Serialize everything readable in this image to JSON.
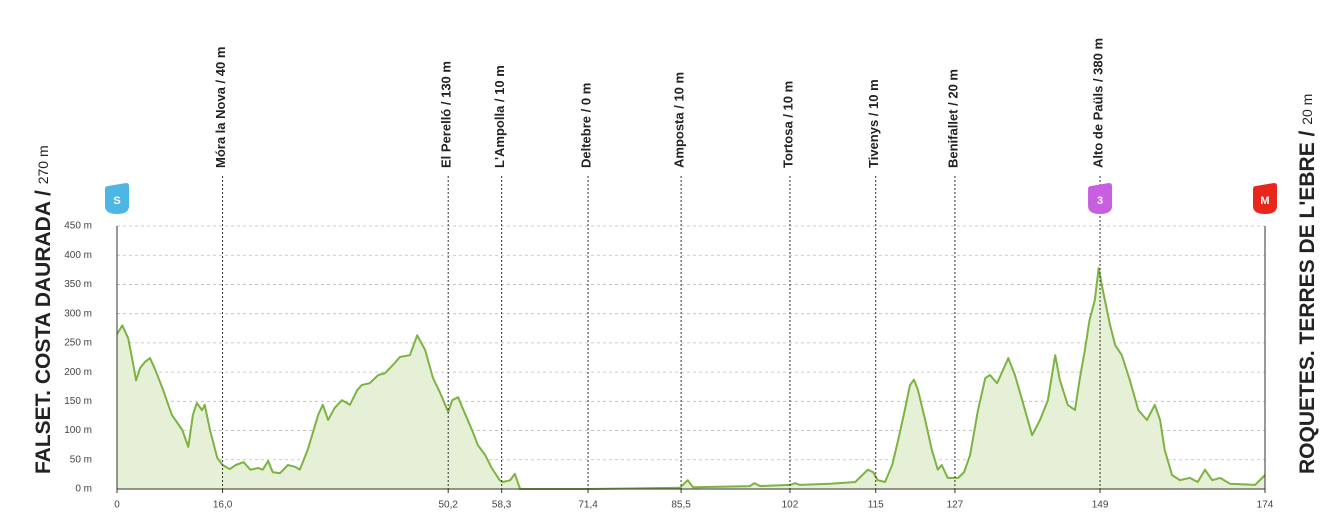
{
  "chart_data": {
    "type": "line",
    "start": {
      "name": "FALSET. COSTA DAURADA /",
      "altitude": "270 m"
    },
    "finish": {
      "name": "ROQUETES. TERRES DE L'EBRE /",
      "altitude": "20 m"
    },
    "x": [
      0,
      0.8,
      1.7,
      2.4,
      2.9,
      3.5,
      4.2,
      5.0,
      5.8,
      7.0,
      8.3,
      9.9,
      10.8,
      11.5,
      12.1,
      12.9,
      13.3,
      14.1,
      15.2,
      16.0,
      17.1,
      18.0,
      19.2,
      20.2,
      21.4,
      22.1,
      22.9,
      23.6,
      24.7,
      25.9,
      27.0,
      27.7,
      28.9,
      30.5,
      31.2,
      32.0,
      33.0,
      34.1,
      35.3,
      36.4,
      37.1,
      38.3,
      39.6,
      40.6,
      41.8,
      42.9,
      44.4,
      45.5,
      46.7,
      47.9,
      49.0,
      50.2,
      50.8,
      51.7,
      52.7,
      53.8,
      54.7,
      55.8,
      56.8,
      58.0,
      58.5,
      59.6,
      60.3,
      61.1,
      71.4,
      85.3,
      86.5,
      87.3,
      95.9,
      96.6,
      97.5,
      102.0,
      102.8,
      103.5,
      108.1,
      111.9,
      113.8,
      114.6,
      115.3,
      116.4,
      117.5,
      118.4,
      119.4,
      120.2,
      120.8,
      121.4,
      122.5,
      123.5,
      124.4,
      125.0,
      125.9,
      127.5,
      128.4,
      129.3,
      130.5,
      131.6,
      132.3,
      133.4,
      134.3,
      135.1,
      136.1,
      137.2,
      138.7,
      139.9,
      141.1,
      142.2,
      142.9,
      144.1,
      145.2,
      145.9,
      146.7,
      147.4,
      148.2,
      148.8,
      149.4,
      150.5,
      151.3,
      152.3,
      153.5,
      154.8,
      156.1,
      157.3,
      158.1,
      158.8,
      159.9,
      161.1,
      162.6,
      163.8,
      164.9,
      166.0,
      167.2,
      168.7,
      172.5,
      174
    ],
    "values": [
      265,
      280,
      258,
      217,
      186,
      207,
      217,
      224,
      204,
      169,
      127,
      101,
      72,
      127,
      147,
      135,
      144,
      101,
      53,
      41,
      34,
      41,
      46,
      33,
      36,
      33,
      48,
      29,
      27,
      41,
      38,
      33,
      67,
      127,
      144,
      118,
      139,
      152,
      144,
      169,
      178,
      181,
      195,
      198,
      212,
      226,
      229,
      263,
      238,
      190,
      164,
      132,
      152,
      157,
      130,
      101,
      75,
      58,
      36,
      15,
      12,
      15,
      26,
      0,
      0,
      2,
      15,
      3,
      5,
      10,
      5,
      7,
      10,
      7,
      9,
      12,
      33,
      29,
      15,
      12,
      41,
      84,
      135,
      178,
      187,
      169,
      118,
      67,
      33,
      41,
      19,
      19,
      29,
      58,
      135,
      190,
      195,
      181,
      204,
      224,
      195,
      152,
      92,
      118,
      152,
      229,
      187,
      144,
      135,
      187,
      238,
      289,
      323,
      378,
      341,
      281,
      246,
      229,
      187,
      135,
      118,
      144,
      118,
      67,
      24,
      15,
      19,
      12,
      33,
      15,
      19,
      9,
      7,
      24
    ],
    "line_color": "#7cb342",
    "area_color": "#e6f0d6",
    "xlim": [
      0,
      174
    ],
    "ylim": [
      0,
      450
    ],
    "xticks": [
      0,
      {
        "value": 16.0,
        "label": "16,0"
      },
      {
        "value": 50.2,
        "label": "50,2"
      },
      {
        "value": 58.3,
        "label": "58,3"
      },
      {
        "value": 71.4,
        "label": "71,4"
      },
      {
        "value": 85.5,
        "label": "85,5"
      },
      102,
      115,
      127,
      149,
      174
    ],
    "yticks": [
      {
        "value": 0,
        "label": "0 m"
      },
      {
        "value": 50,
        "label": "50 m"
      },
      {
        "value": 100,
        "label": "100 m"
      },
      {
        "value": 150,
        "label": "150 m"
      },
      {
        "value": 200,
        "label": "200 m"
      },
      {
        "value": 250,
        "label": "250 m"
      },
      {
        "value": 300,
        "label": "300 m"
      },
      {
        "value": 350,
        "label": "350 m"
      },
      {
        "value": 400,
        "label": "400 m"
      },
      {
        "value": 450,
        "label": "450 m"
      }
    ],
    "grid": true,
    "waypoints": [
      {
        "km": 16.0,
        "label": "Móra la Nova / 40 m"
      },
      {
        "km": 50.2,
        "label": "El Perelló / 130 m"
      },
      {
        "km": 58.3,
        "label": "L'Ampolla / 10 m"
      },
      {
        "km": 71.4,
        "label": "Deltebre / 0 m"
      },
      {
        "km": 85.5,
        "label": "Amposta / 10 m"
      },
      {
        "km": 102,
        "label": "Tortosa / 10 m"
      },
      {
        "km": 115,
        "label": "Tivenys / 10 m"
      },
      {
        "km": 127,
        "label": "Benifallet / 20 m"
      },
      {
        "km": 149,
        "label": "Alto de Paüls / 380 m"
      }
    ],
    "badges": [
      {
        "km": 0,
        "label": "S",
        "color": "#4db6e2"
      },
      {
        "km": 149,
        "label": "3",
        "color": "#c85ee0"
      },
      {
        "km": 174,
        "label": "M",
        "color": "#e8261c"
      }
    ]
  }
}
